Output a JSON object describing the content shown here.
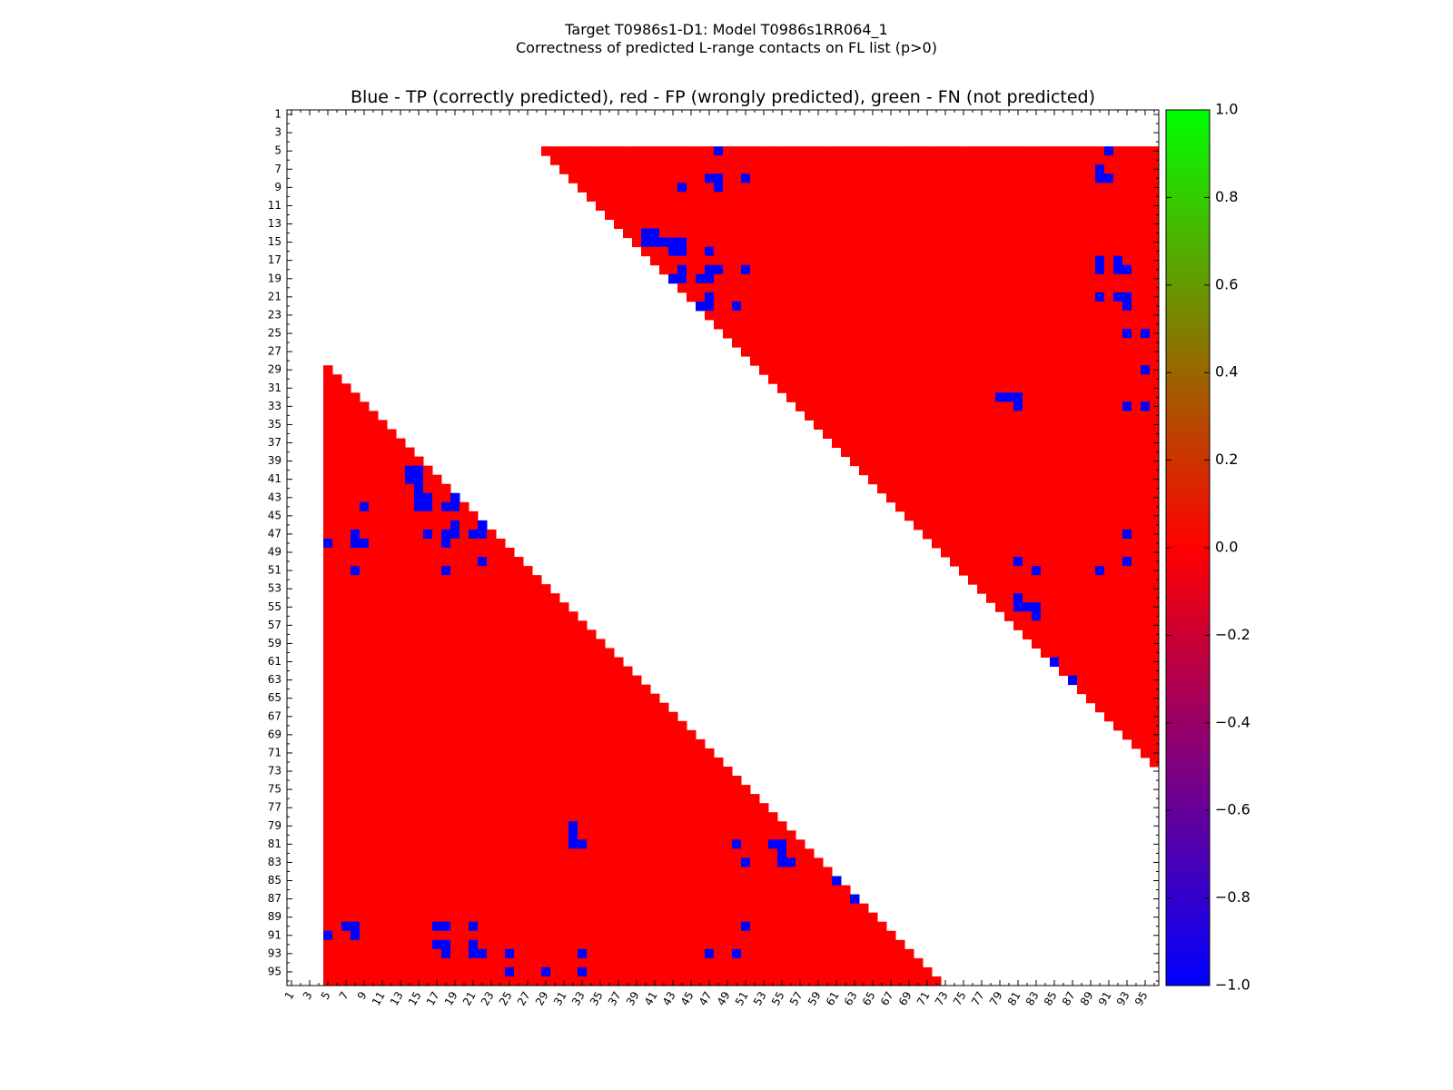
{
  "chart_data": {
    "type": "heatmap",
    "suptitle_line1": "Target T0986s1-D1: Model T0986s1RR064_1",
    "suptitle_line2": "Correctness of predicted L-range contacts on FL list (p>0)",
    "title": "Blue - TP (correctly predicted), red - FP (wrongly predicted), green - FN (not predicted)",
    "matrix_size": 96,
    "x_tick_labels": [
      "1",
      "3",
      "5",
      "7",
      "9",
      "11",
      "13",
      "15",
      "17",
      "19",
      "21",
      "23",
      "25",
      "27",
      "29",
      "31",
      "33",
      "35",
      "37",
      "39",
      "41",
      "43",
      "45",
      "47",
      "49",
      "51",
      "53",
      "55",
      "57",
      "59",
      "61",
      "63",
      "65",
      "67",
      "69",
      "71",
      "73",
      "75",
      "77",
      "79",
      "81",
      "83",
      "85",
      "87",
      "89",
      "91",
      "93",
      "95"
    ],
    "y_tick_labels": [
      "1",
      "3",
      "5",
      "7",
      "9",
      "11",
      "13",
      "15",
      "17",
      "19",
      "21",
      "23",
      "25",
      "27",
      "29",
      "31",
      "33",
      "35",
      "37",
      "39",
      "41",
      "43",
      "45",
      "47",
      "49",
      "51",
      "53",
      "55",
      "57",
      "59",
      "61",
      "63",
      "65",
      "67",
      "69",
      "71",
      "73",
      "75",
      "77",
      "79",
      "81",
      "83",
      "85",
      "87",
      "89",
      "91",
      "93",
      "95"
    ],
    "fp_min_residue": 5,
    "fp_max_residue": 96,
    "min_separation": 24,
    "value_range": [
      -1.0,
      1.0
    ],
    "colorbar_ticks": [
      "1.0",
      "0.8",
      "0.6",
      "0.4",
      "0.2",
      "0.0",
      "−0.2",
      "−0.4",
      "−0.6",
      "−0.8",
      "−1.0"
    ],
    "colorbar_values": [
      1.0,
      0.8,
      0.6,
      0.4,
      0.2,
      0.0,
      -0.2,
      -0.4,
      -0.6,
      -0.8,
      -1.0
    ],
    "colors": {
      "tp": "#0000ff",
      "fp": "#ff0000",
      "fn": "#00ff00",
      "background": "#ffffff"
    },
    "tp_contacts": [
      [
        5,
        48
      ],
      [
        5,
        91
      ],
      [
        7,
        90
      ],
      [
        8,
        47
      ],
      [
        8,
        48
      ],
      [
        8,
        51
      ],
      [
        8,
        90
      ],
      [
        8,
        91
      ],
      [
        9,
        44
      ],
      [
        9,
        48
      ],
      [
        14,
        40
      ],
      [
        14,
        41
      ],
      [
        15,
        40
      ],
      [
        15,
        41
      ],
      [
        15,
        42
      ],
      [
        15,
        43
      ],
      [
        15,
        44
      ],
      [
        16,
        43
      ],
      [
        16,
        44
      ],
      [
        16,
        47
      ],
      [
        17,
        90
      ],
      [
        17,
        92
      ],
      [
        18,
        44
      ],
      [
        18,
        47
      ],
      [
        18,
        48
      ],
      [
        18,
        51
      ],
      [
        18,
        90
      ],
      [
        18,
        92
      ],
      [
        18,
        93
      ],
      [
        19,
        43
      ],
      [
        19,
        44
      ],
      [
        19,
        46
      ],
      [
        19,
        47
      ],
      [
        21,
        47
      ],
      [
        21,
        90
      ],
      [
        21,
        92
      ],
      [
        21,
        93
      ],
      [
        22,
        46
      ],
      [
        22,
        47
      ],
      [
        22,
        50
      ],
      [
        22,
        93
      ],
      [
        25,
        93
      ],
      [
        25,
        95
      ],
      [
        29,
        95
      ],
      [
        32,
        79
      ],
      [
        32,
        80
      ],
      [
        32,
        81
      ],
      [
        33,
        81
      ],
      [
        33,
        93
      ],
      [
        33,
        95
      ],
      [
        47,
        93
      ],
      [
        50,
        81
      ],
      [
        50,
        93
      ],
      [
        51,
        83
      ],
      [
        51,
        90
      ],
      [
        54,
        81
      ],
      [
        55,
        81
      ],
      [
        55,
        82
      ],
      [
        55,
        83
      ],
      [
        56,
        83
      ],
      [
        61,
        85
      ],
      [
        63,
        87
      ]
    ]
  }
}
